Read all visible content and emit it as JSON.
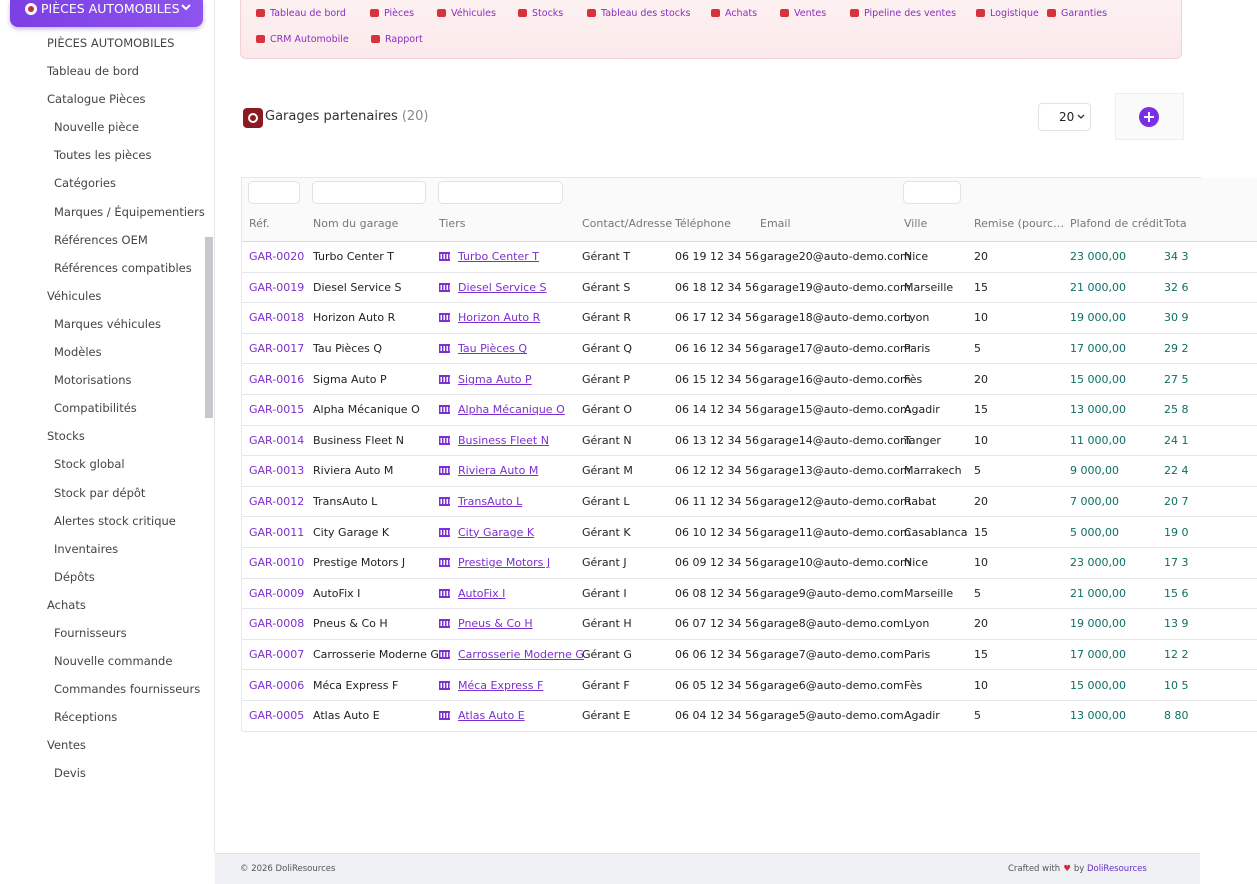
{
  "module_button": "PIÈCES AUTOMOBILES",
  "sidebar": {
    "sections": [
      {
        "label": "PIÈCES AUTOMOBILES"
      },
      {
        "label": "Tableau de bord"
      },
      {
        "label": "Catalogue Pièces",
        "items": [
          "Nouvelle pièce",
          "Toutes les pièces",
          "Catégories",
          "Marques / Équipementiers",
          "Références OEM",
          "Références compatibles"
        ]
      },
      {
        "label": "Véhicules",
        "items": [
          "Marques véhicules",
          "Modèles",
          "Motorisations",
          "Compatibilités"
        ]
      },
      {
        "label": "Stocks",
        "items": [
          "Stock global",
          "Stock par dépôt",
          "Alertes stock critique",
          "Inventaires",
          "Dépôts"
        ]
      },
      {
        "label": "Achats",
        "items": [
          "Fournisseurs",
          "Nouvelle commande",
          "Commandes fournisseurs",
          "Réceptions"
        ]
      },
      {
        "label": "Ventes",
        "items": [
          "Devis"
        ]
      }
    ]
  },
  "topnav": [
    "Tableau de bord",
    "Pièces",
    "Véhicules",
    "Stocks",
    "Tableau des stocks",
    "Achats",
    "Ventes",
    "Pipeline des ventes",
    "Logistique",
    "Garanties",
    "CRM Automobile",
    "Rapport"
  ],
  "header": {
    "title": "Garages partenaires",
    "count": "(20)",
    "page_size": "20"
  },
  "table": {
    "columns": [
      "Réf.",
      "Nom du garage",
      "Tiers",
      "Contact/Adresse",
      "Téléphone",
      "Email",
      "Ville",
      "Remise (pourc…",
      "Plafond de crédit",
      "Tota"
    ],
    "rows": [
      [
        "GAR-0020",
        "Turbo Center T",
        "Turbo Center T",
        "Gérant T",
        "06 19 12 34 56",
        "garage20@auto-demo.com",
        "Nice",
        "20",
        "23 000,00",
        "34 3"
      ],
      [
        "GAR-0019",
        "Diesel Service S",
        "Diesel Service S",
        "Gérant S",
        "06 18 12 34 56",
        "garage19@auto-demo.com",
        "Marseille",
        "15",
        "21 000,00",
        "32 6"
      ],
      [
        "GAR-0018",
        "Horizon Auto R",
        "Horizon Auto R",
        "Gérant R",
        "06 17 12 34 56",
        "garage18@auto-demo.com",
        "Lyon",
        "10",
        "19 000,00",
        "30 9"
      ],
      [
        "GAR-0017",
        "Tau Pièces Q",
        "Tau Pièces Q",
        "Gérant Q",
        "06 16 12 34 56",
        "garage17@auto-demo.com",
        "Paris",
        "5",
        "17 000,00",
        "29 2"
      ],
      [
        "GAR-0016",
        "Sigma Auto P",
        "Sigma Auto P",
        "Gérant P",
        "06 15 12 34 56",
        "garage16@auto-demo.com",
        "Fès",
        "20",
        "15 000,00",
        "27 5"
      ],
      [
        "GAR-0015",
        "Alpha Mécanique O",
        "Alpha Mécanique O",
        "Gérant O",
        "06 14 12 34 56",
        "garage15@auto-demo.com",
        "Agadir",
        "15",
        "13 000,00",
        "25 8"
      ],
      [
        "GAR-0014",
        "Business Fleet N",
        "Business Fleet N",
        "Gérant N",
        "06 13 12 34 56",
        "garage14@auto-demo.com",
        "Tanger",
        "10",
        "11 000,00",
        "24 1"
      ],
      [
        "GAR-0013",
        "Riviera Auto M",
        "Riviera Auto M",
        "Gérant M",
        "06 12 12 34 56",
        "garage13@auto-demo.com",
        "Marrakech",
        "5",
        "9 000,00",
        "22 4"
      ],
      [
        "GAR-0012",
        "TransAuto L",
        "TransAuto L",
        "Gérant L",
        "06 11 12 34 56",
        "garage12@auto-demo.com",
        "Rabat",
        "20",
        "7 000,00",
        "20 7"
      ],
      [
        "GAR-0011",
        "City Garage K",
        "City Garage K",
        "Gérant K",
        "06 10 12 34 56",
        "garage11@auto-demo.com",
        "Casablanca",
        "15",
        "5 000,00",
        "19 0"
      ],
      [
        "GAR-0010",
        "Prestige Motors J",
        "Prestige Motors J",
        "Gérant J",
        "06 09 12 34 56",
        "garage10@auto-demo.com",
        "Nice",
        "10",
        "23 000,00",
        "17 3"
      ],
      [
        "GAR-0009",
        "AutoFix I",
        "AutoFix I",
        "Gérant I",
        "06 08 12 34 56",
        "garage9@auto-demo.com",
        "Marseille",
        "5",
        "21 000,00",
        "15 6"
      ],
      [
        "GAR-0008",
        "Pneus & Co H",
        "Pneus & Co H",
        "Gérant H",
        "06 07 12 34 56",
        "garage8@auto-demo.com",
        "Lyon",
        "20",
        "19 000,00",
        "13 9"
      ],
      [
        "GAR-0007",
        "Carrosserie Moderne G",
        "Carrosserie Moderne G",
        "Gérant G",
        "06 06 12 34 56",
        "garage7@auto-demo.com",
        "Paris",
        "15",
        "17 000,00",
        "12 2"
      ],
      [
        "GAR-0006",
        "Méca Express F",
        "Méca Express F",
        "Gérant F",
        "06 05 12 34 56",
        "garage6@auto-demo.com",
        "Fès",
        "10",
        "15 000,00",
        "10 5"
      ],
      [
        "GAR-0005",
        "Atlas Auto E",
        "Atlas Auto E",
        "Gérant E",
        "06 04 12 34 56",
        "garage5@auto-demo.com",
        "Agadir",
        "5",
        "13 000,00",
        "8 80"
      ]
    ]
  },
  "footer": {
    "copyright": "© 2026 DoliResources",
    "crafted": "Crafted with",
    "by": "by",
    "brand": "DoliResources"
  }
}
